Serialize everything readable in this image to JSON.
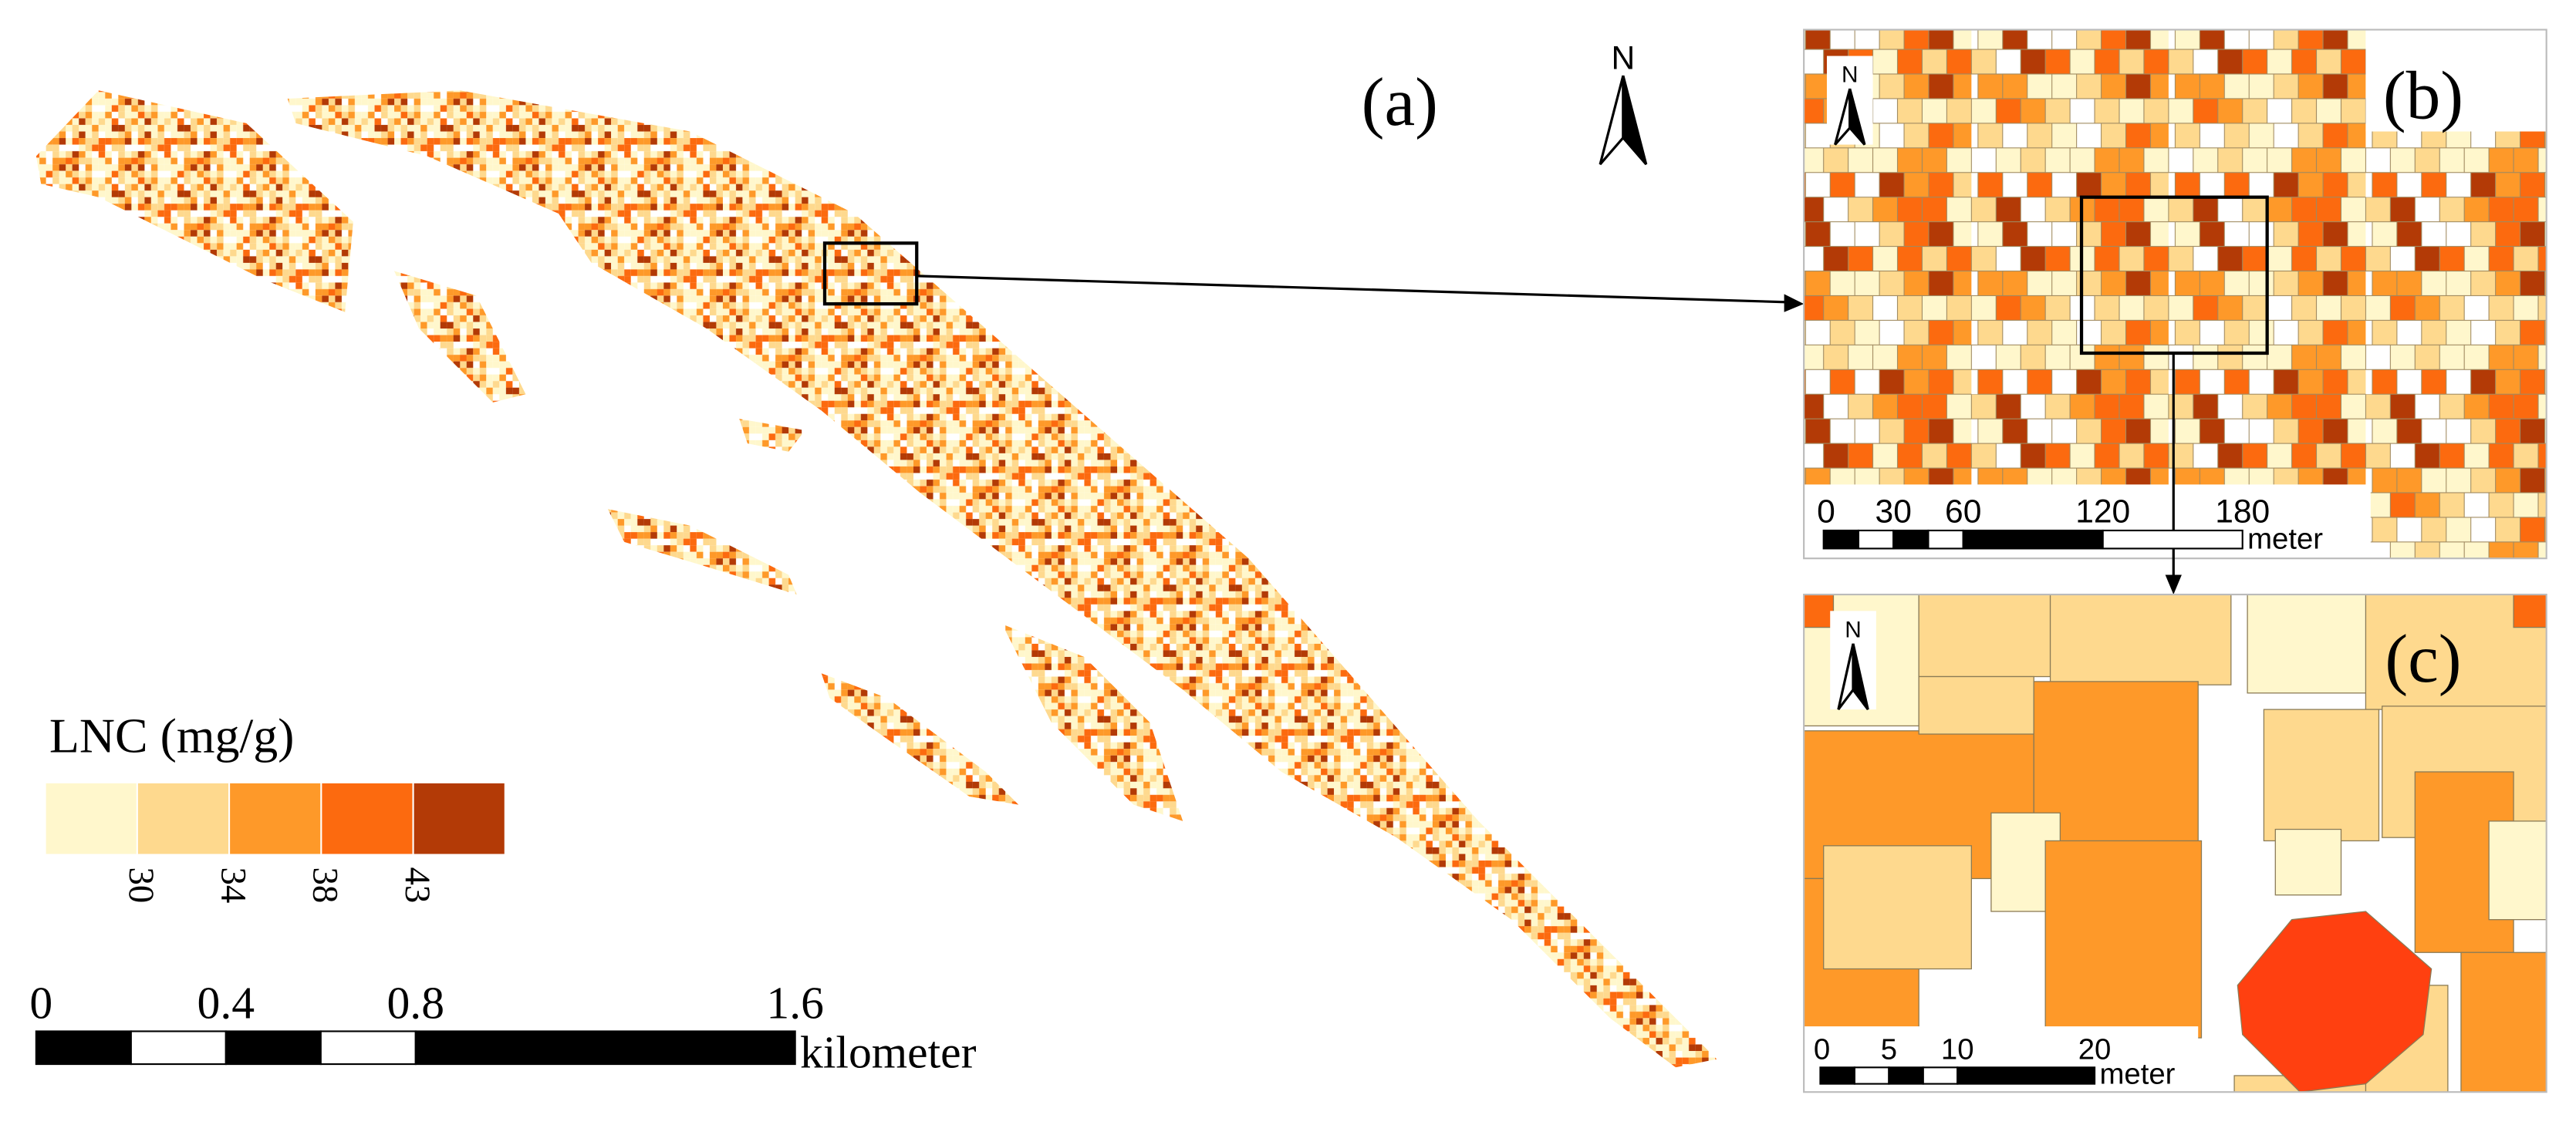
{
  "panels": {
    "a": {
      "label": "(a)"
    },
    "b": {
      "label": "(b)"
    },
    "c": {
      "label": "(c)"
    }
  },
  "north": "N",
  "legend": {
    "title": "LNC (mg/g)",
    "colors": [
      "#fff7cc",
      "#fed98e",
      "#fe9929",
      "#fc6a0f",
      "#b33a06"
    ],
    "breaks": [
      30,
      34,
      38,
      43
    ]
  },
  "scale_bars": [
    {
      "ticks": [
        0,
        0.4,
        0.8,
        1.6
      ],
      "unit": "kilometer"
    },
    {
      "ticks": [
        0,
        30,
        60,
        120,
        180
      ],
      "unit": "meter"
    },
    {
      "ticks": [
        0,
        5,
        10,
        20
      ],
      "unit": "meter"
    }
  ]
}
